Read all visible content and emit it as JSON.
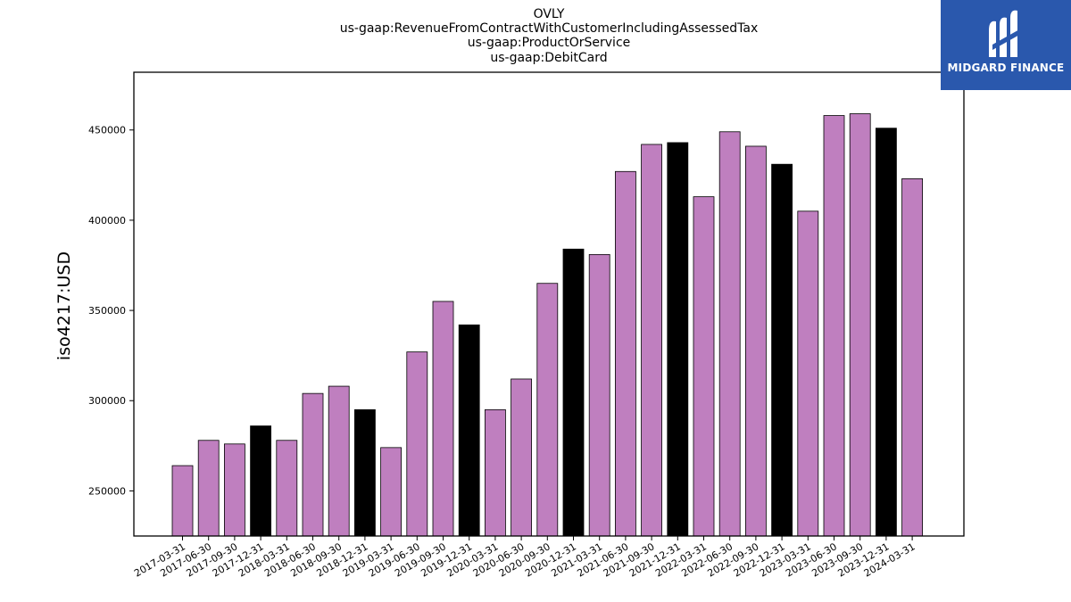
{
  "logo": {
    "text": "MIDGARD FINANCE",
    "background": "#2a58ad"
  },
  "colors": {
    "quarter_bar": "#bf7fbf",
    "year_end_bar": "#000000"
  },
  "chart_data": {
    "type": "bar",
    "title": [
      "OVLY",
      "us-gaap:RevenueFromContractWithCustomerIncludingAssessedTax",
      "us-gaap:ProductOrService",
      "us-gaap:DebitCard"
    ],
    "xlabel": "",
    "ylabel": "iso4217:USD",
    "ylim": [
      225000,
      482000
    ],
    "yticks": [
      250000,
      300000,
      350000,
      400000,
      450000
    ],
    "grid": false,
    "categories": [
      "2017-03-31",
      "2017-06-30",
      "2017-09-30",
      "2017-12-31",
      "2018-03-31",
      "2018-06-30",
      "2018-09-30",
      "2018-12-31",
      "2019-03-31",
      "2019-06-30",
      "2019-09-30",
      "2019-12-31",
      "2020-03-31",
      "2020-06-30",
      "2020-09-30",
      "2020-12-31",
      "2021-03-31",
      "2021-06-30",
      "2021-09-30",
      "2021-12-31",
      "2022-03-31",
      "2022-06-30",
      "2022-09-30",
      "2022-12-31",
      "2023-03-31",
      "2023-06-30",
      "2023-09-30",
      "2023-12-31",
      "2024-03-31"
    ],
    "values": [
      264000,
      278000,
      276000,
      286000,
      278000,
      304000,
      308000,
      295000,
      274000,
      327000,
      355000,
      342000,
      295000,
      312000,
      365000,
      384000,
      381000,
      427000,
      442000,
      443000,
      413000,
      449000,
      441000,
      431000,
      405000,
      458000,
      459000,
      451000,
      423000
    ]
  }
}
